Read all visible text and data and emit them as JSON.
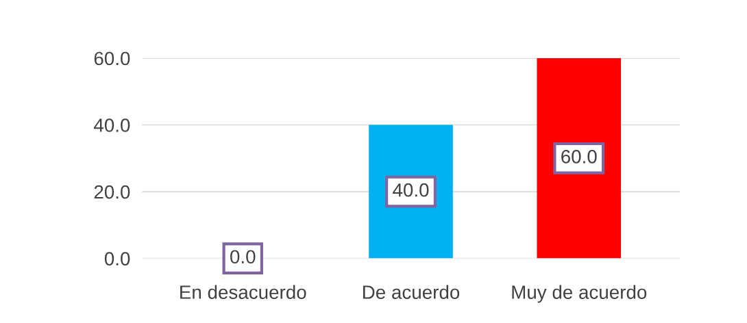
{
  "chart_data": {
    "type": "bar",
    "categories": [
      "En desacuerdo",
      "De acuerdo",
      "Muy de acuerdo"
    ],
    "values": [
      0.0,
      40.0,
      60.0
    ],
    "colors": [
      "#c8c800",
      "#00b0f0",
      "#ff0000"
    ],
    "ylim": [
      0,
      60
    ],
    "yticks": [
      {
        "value": 0,
        "label": "0.0"
      },
      {
        "value": 20,
        "label": "20.0"
      },
      {
        "value": 40,
        "label": "40.0"
      },
      {
        "value": 60,
        "label": "60.0"
      }
    ],
    "value_labels": [
      "0.0",
      "40.0",
      "60.0"
    ],
    "grid": "y"
  }
}
